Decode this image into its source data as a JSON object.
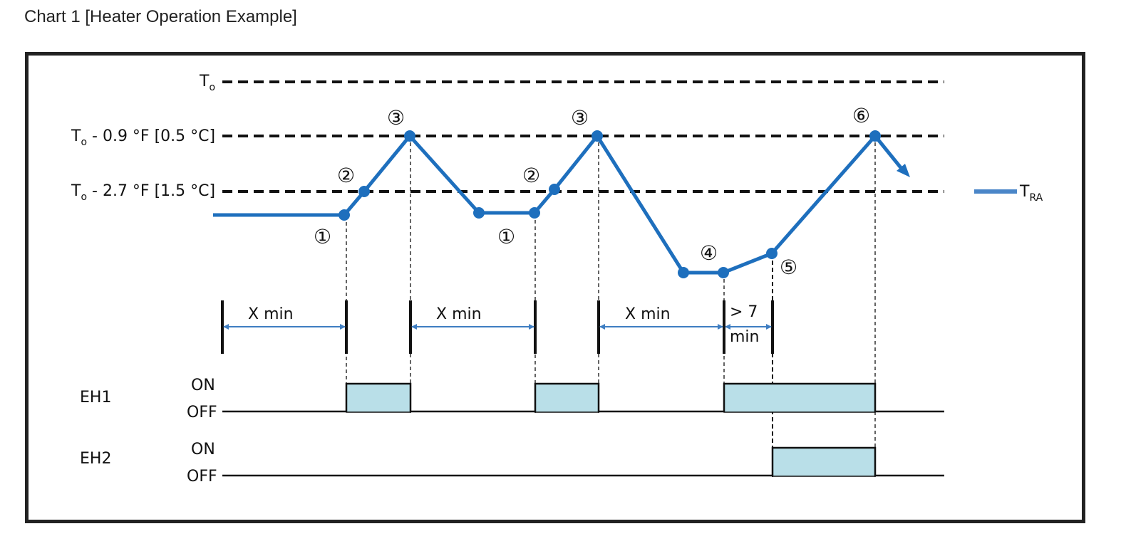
{
  "title": "Chart 1 [Heater Operation Example]",
  "levels": {
    "to_main": "T",
    "to_sub": "o",
    "l1_main": "T",
    "l1_sub": "o",
    "l1_rest": " - 0.9 °F [0.5 °C]",
    "l2_main": "T",
    "l2_sub": "o",
    "l2_rest": " - 2.7 °F [1.5 °C]"
  },
  "legend": {
    "main": "T",
    "sub": "RA",
    "color": "#2e75c3"
  },
  "markers": {
    "m1a": "①",
    "m2a": "②",
    "m3a": "③",
    "m1b": "①",
    "m2b": "②",
    "m3b": "③",
    "m4": "④",
    "m5": "⑤",
    "m6": "⑥"
  },
  "intervals": {
    "x1": "X min",
    "x2": "X min",
    "x3": "X min",
    "gt_line1": "> 7",
    "gt_line2": "min"
  },
  "heaters": {
    "eh1": {
      "name": "EH1",
      "on": "ON",
      "off": "OFF"
    },
    "eh2": {
      "name": "EH2",
      "on": "ON",
      "off": "OFF"
    }
  },
  "colors": {
    "line": "#1e6fbd",
    "fill": "#b9dfe8",
    "dark": "#111111",
    "arrow": "#3f7ec2"
  }
}
